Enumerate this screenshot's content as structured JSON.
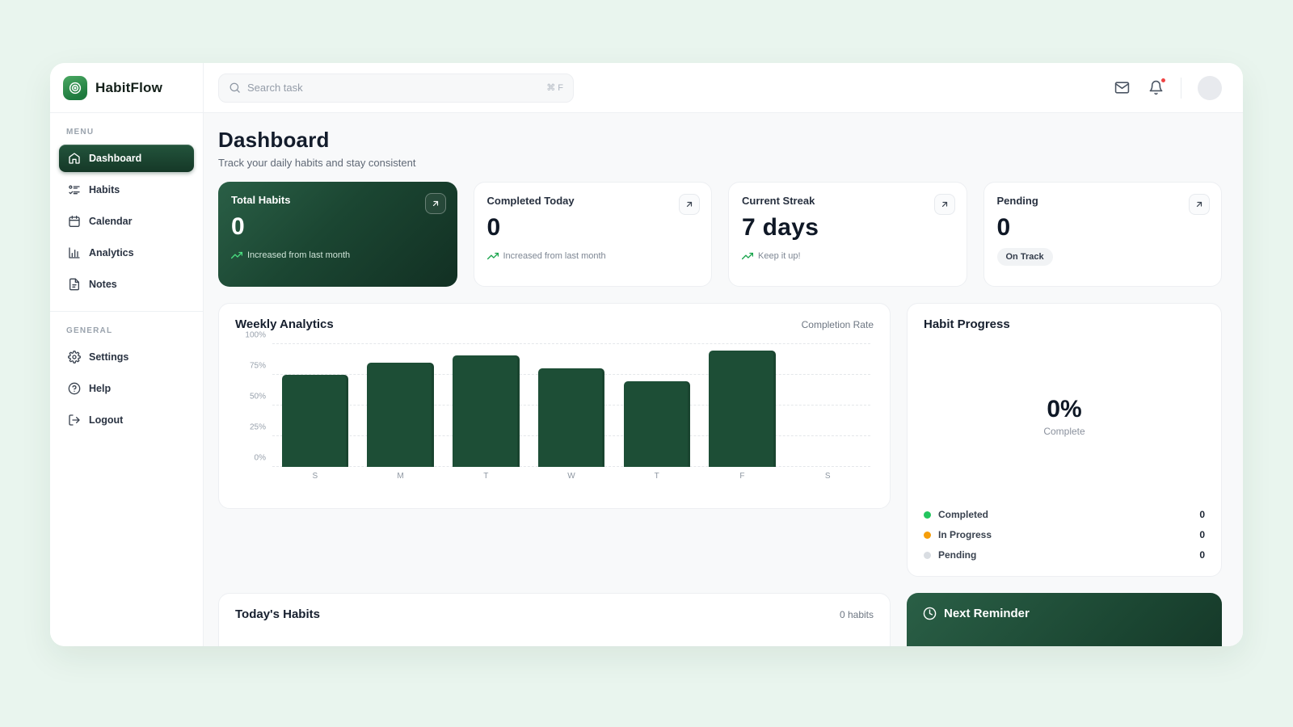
{
  "app": {
    "name": "HabitFlow"
  },
  "header": {
    "search_placeholder": "Search task",
    "search_shortcut": "⌘ F"
  },
  "sidebar": {
    "menu_label": "MENU",
    "general_label": "GENERAL",
    "menu_items": [
      {
        "label": "Dashboard",
        "active": true
      },
      {
        "label": "Habits",
        "active": false
      },
      {
        "label": "Calendar",
        "active": false
      },
      {
        "label": "Analytics",
        "active": false
      },
      {
        "label": "Notes",
        "active": false
      }
    ],
    "general_items": [
      {
        "label": "Settings"
      },
      {
        "label": "Help"
      },
      {
        "label": "Logout"
      }
    ]
  },
  "page": {
    "title": "Dashboard",
    "subtitle": "Track your daily habits and stay consistent"
  },
  "stats": [
    {
      "title": "Total Habits",
      "value": "0",
      "note": "Increased from last month",
      "variant": "green"
    },
    {
      "title": "Completed Today",
      "value": "0",
      "note": "Increased from last month",
      "variant": "white"
    },
    {
      "title": "Current Streak",
      "value": "7 days",
      "note": "Keep it up!",
      "variant": "white"
    },
    {
      "title": "Pending",
      "value": "0",
      "badge": "On Track",
      "variant": "white"
    }
  ],
  "chart_data": {
    "type": "bar",
    "title": "Weekly Analytics",
    "legend_right": "Completion Rate",
    "categories": [
      "S",
      "M",
      "T",
      "W",
      "T",
      "F",
      "S"
    ],
    "values": [
      75,
      85,
      91,
      80,
      70,
      95,
      0
    ],
    "ylim": [
      0,
      100
    ],
    "ytick_labels": [
      "0%",
      "25%",
      "50%",
      "75%",
      "100%"
    ],
    "grid": "horizontal-dashed",
    "legend_position": "top-right",
    "bar_color": "#1d4e36"
  },
  "habit_progress": {
    "title": "Habit Progress",
    "percent": "0%",
    "percent_label": "Complete",
    "legend": [
      {
        "label": "Completed",
        "value": "0",
        "color": "#22c55e"
      },
      {
        "label": "In Progress",
        "value": "0",
        "color": "#f59e0b"
      },
      {
        "label": "Pending",
        "value": "0",
        "color": "#d9dde2"
      }
    ]
  },
  "todays_habits": {
    "title": "Today's Habits",
    "count": "0 habits"
  },
  "next_reminder": {
    "title": "Next Reminder"
  },
  "colors": {
    "brand_green": "#1e7a3e",
    "dark_green": "#1b4632",
    "bar_green": "#1d4e36",
    "success": "#22c55e",
    "warning": "#f59e0b",
    "pending_gray": "#d9dde2",
    "notification_red": "#ef4444",
    "page_bg": "#e9f5ee",
    "content_bg": "#f8f9fa"
  }
}
